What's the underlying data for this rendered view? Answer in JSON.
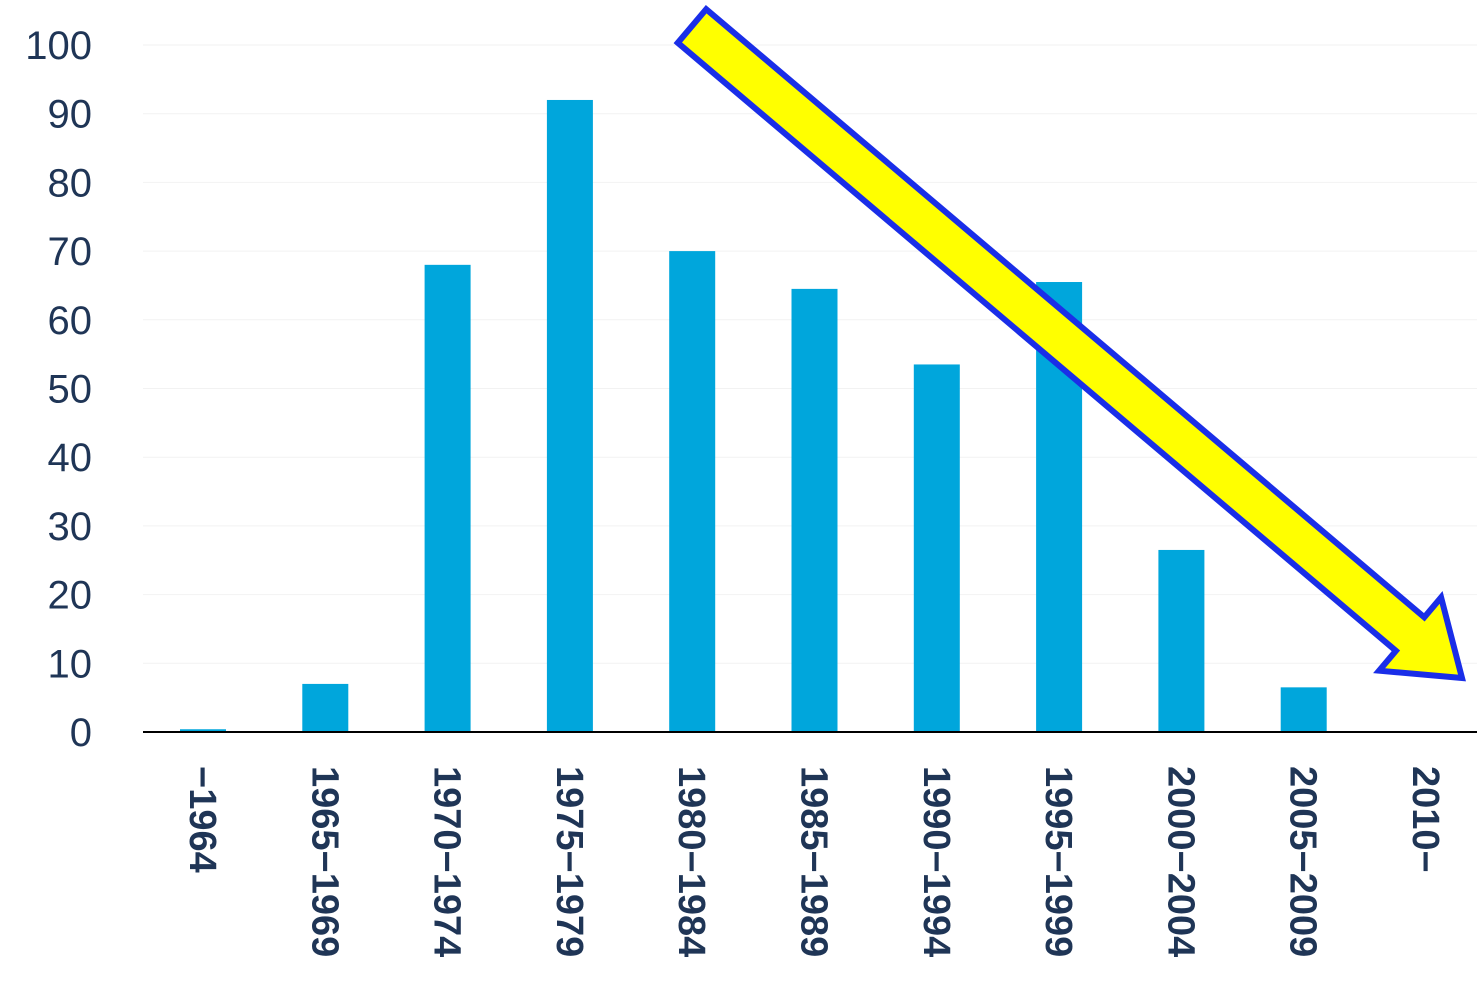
{
  "chart_data": {
    "type": "bar",
    "title": "",
    "xlabel": "",
    "ylabel": "",
    "ylim": [
      0,
      100
    ],
    "yticks": [
      0,
      10,
      20,
      30,
      40,
      50,
      60,
      70,
      80,
      90,
      100
    ],
    "categories": [
      "−1964",
      "1965−1969",
      "1970−1974",
      "1975−1979",
      "1980−1984",
      "1985−1989",
      "1990−1994",
      "1995−1999",
      "2000−2004",
      "2005−2009",
      "2010−"
    ],
    "values": [
      0.4,
      7,
      68,
      92,
      70,
      64.5,
      53.5,
      65.5,
      26.5,
      6.5,
      0
    ],
    "bar_color": "#00a6dc",
    "axis_color": "#000000",
    "label_color": "#1f3556",
    "grid": false,
    "legend": "none",
    "annotation": {
      "type": "arrow",
      "meaning": "downward trend",
      "fill": "#ffff00",
      "stroke": "#1a2ee8"
    }
  }
}
